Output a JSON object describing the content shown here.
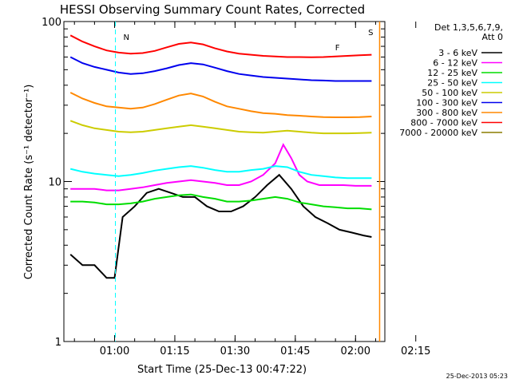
{
  "chart_data": {
    "type": "line",
    "title": "HESSI Observing Summary Count Rates, Corrected",
    "xlabel": "Start Time (25-Dec-13 00:47:22)",
    "ylabel": "Corrected Count Rate (s⁻¹ detector⁻¹)",
    "y_scale": "log",
    "ylim": [
      1,
      100
    ],
    "y_ticks": [
      {
        "value": 1,
        "label": "1"
      },
      {
        "value": 10,
        "label": "10"
      },
      {
        "value": 100,
        "label": "100"
      }
    ],
    "xlim_min": [
      47.37,
      127.3
    ],
    "x_ticks": [
      {
        "value": 60,
        "label": "01:00"
      },
      {
        "value": 75,
        "label": "01:15"
      },
      {
        "value": 90,
        "label": "01:30"
      },
      {
        "value": 105,
        "label": "01:45"
      },
      {
        "value": 120,
        "label": "02:00"
      },
      {
        "value": 135,
        "label": "02:15"
      }
    ],
    "legend_title_1": "Det 1,3,5,6,7,9,",
    "legend_title_2": "Att 0",
    "legend_position": "right",
    "flag_markers": [
      {
        "label": "N",
        "x": 60.2,
        "color": "#00e0ff"
      },
      {
        "label": "S",
        "x": 126.0,
        "color": "#ff8800"
      },
      {
        "label": "F",
        "x": 115.5,
        "color": "#ff0000"
      }
    ],
    "series": [
      {
        "name": "3 - 6 keV",
        "color": "#000000",
        "x": [
          49,
          52,
          55,
          58,
          60,
          62,
          65,
          68,
          71,
          74,
          77,
          80,
          83,
          86,
          89,
          92,
          95,
          98,
          101,
          104,
          107,
          110,
          113,
          116,
          119,
          122,
          124
        ],
        "y": [
          3.5,
          3.0,
          3.0,
          2.5,
          2.5,
          6.0,
          7.0,
          8.5,
          9.0,
          8.5,
          8.0,
          8.0,
          7.0,
          6.5,
          6.5,
          7.0,
          8.0,
          9.5,
          11.0,
          9.0,
          7.0,
          6.0,
          5.5,
          5.0,
          4.8,
          4.6,
          4.5
        ]
      },
      {
        "name": "6 - 12 keV",
        "color": "#ff00ff",
        "x": [
          49,
          52,
          55,
          58,
          61,
          64,
          67,
          70,
          73,
          76,
          79,
          82,
          85,
          88,
          91,
          94,
          97,
          100,
          102,
          104,
          106,
          108,
          111,
          114,
          117,
          120,
          124
        ],
        "y": [
          9.0,
          9.0,
          9.0,
          8.8,
          8.8,
          9.0,
          9.2,
          9.5,
          9.8,
          10.0,
          10.2,
          10.0,
          9.8,
          9.5,
          9.5,
          10.0,
          11.0,
          13.0,
          17.0,
          14.0,
          11.0,
          10.0,
          9.5,
          9.5,
          9.5,
          9.4,
          9.4
        ]
      },
      {
        "name": "12 - 25 keV",
        "color": "#00dd00",
        "x": [
          49,
          52,
          55,
          58,
          61,
          64,
          67,
          70,
          73,
          76,
          79,
          82,
          85,
          88,
          91,
          94,
          97,
          100,
          103,
          106,
          109,
          112,
          115,
          118,
          121,
          124
        ],
        "y": [
          7.5,
          7.5,
          7.4,
          7.2,
          7.2,
          7.3,
          7.5,
          7.8,
          8.0,
          8.2,
          8.3,
          8.0,
          7.8,
          7.5,
          7.5,
          7.6,
          7.8,
          8.0,
          7.8,
          7.4,
          7.2,
          7.0,
          6.9,
          6.8,
          6.8,
          6.7
        ]
      },
      {
        "name": "25 - 50 keV",
        "color": "#00ffff",
        "x": [
          49,
          52,
          55,
          58,
          61,
          64,
          67,
          70,
          73,
          76,
          79,
          82,
          85,
          88,
          91,
          94,
          97,
          100,
          103,
          106,
          109,
          112,
          115,
          118,
          121,
          124
        ],
        "y": [
          12.0,
          11.5,
          11.2,
          11.0,
          10.8,
          11.0,
          11.3,
          11.7,
          12.0,
          12.3,
          12.5,
          12.2,
          11.8,
          11.5,
          11.5,
          11.8,
          12.0,
          12.5,
          12.3,
          11.5,
          11.0,
          10.8,
          10.6,
          10.5,
          10.5,
          10.5
        ]
      },
      {
        "name": "50 - 100 keV",
        "color": "#cccc00",
        "x": [
          49,
          52,
          55,
          58,
          61,
          64,
          67,
          70,
          73,
          76,
          79,
          82,
          85,
          88,
          91,
          94,
          97,
          100,
          103,
          106,
          109,
          112,
          115,
          118,
          121,
          124
        ],
        "y": [
          24.0,
          22.5,
          21.5,
          21.0,
          20.5,
          20.3,
          20.5,
          21.0,
          21.5,
          22.0,
          22.5,
          22.0,
          21.5,
          21.0,
          20.5,
          20.3,
          20.2,
          20.5,
          20.8,
          20.5,
          20.2,
          20.0,
          20.0,
          20.0,
          20.1,
          20.2
        ]
      },
      {
        "name": "100 - 300 keV",
        "color": "#0000ee",
        "x": [
          49,
          52,
          55,
          58,
          61,
          64,
          67,
          70,
          73,
          76,
          79,
          82,
          85,
          88,
          91,
          94,
          97,
          100,
          103,
          106,
          109,
          112,
          115,
          118,
          121,
          124
        ],
        "y": [
          60.0,
          55.0,
          52.0,
          50.0,
          48.0,
          47.0,
          47.5,
          49.0,
          51.0,
          53.5,
          55.0,
          54.0,
          51.5,
          49.0,
          47.0,
          46.0,
          45.0,
          44.5,
          44.0,
          43.5,
          43.0,
          42.8,
          42.5,
          42.5,
          42.5,
          42.5
        ]
      },
      {
        "name": "300 - 800 keV",
        "color": "#ff8800",
        "x": [
          49,
          52,
          55,
          58,
          61,
          64,
          67,
          70,
          73,
          76,
          79,
          82,
          85,
          88,
          91,
          94,
          97,
          100,
          103,
          106,
          109,
          112,
          115,
          118,
          121,
          124
        ],
        "y": [
          36.0,
          33.0,
          31.0,
          29.5,
          29.0,
          28.5,
          29.0,
          30.5,
          32.5,
          34.5,
          35.5,
          34.0,
          31.5,
          29.5,
          28.5,
          27.5,
          26.8,
          26.5,
          26.0,
          25.8,
          25.5,
          25.3,
          25.2,
          25.2,
          25.3,
          25.5
        ]
      },
      {
        "name": "800 - 7000 keV",
        "color": "#ff0000",
        "x": [
          49,
          52,
          55,
          58,
          61,
          64,
          67,
          70,
          73,
          76,
          79,
          82,
          85,
          88,
          91,
          94,
          97,
          100,
          103,
          106,
          109,
          112,
          115,
          118,
          121,
          124
        ],
        "y": [
          82.0,
          75.0,
          70.0,
          66.0,
          64.0,
          63.0,
          63.5,
          65.5,
          69.0,
          72.5,
          74.0,
          72.0,
          68.0,
          65.0,
          63.0,
          62.0,
          61.0,
          60.5,
          60.0,
          60.0,
          59.8,
          60.0,
          60.5,
          61.0,
          61.5,
          62.0
        ]
      },
      {
        "name": "7000 - 20000 keV",
        "color": "#8b7d00",
        "x": [],
        "y": []
      }
    ]
  },
  "footer": {
    "timestamp": "25-Dec-2013 05:23"
  }
}
